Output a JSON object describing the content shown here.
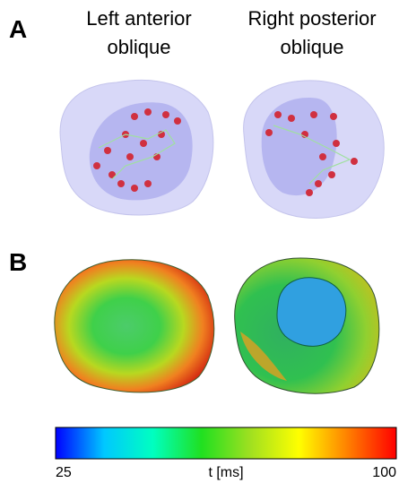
{
  "panels": [
    {
      "label": "A",
      "views": [
        {
          "title": [
            "Left anterior",
            "oblique"
          ]
        },
        {
          "title": [
            "Right posterior",
            "oblique"
          ]
        }
      ]
    },
    {
      "label": "B"
    }
  ],
  "colorbar": {
    "label": "t [ms]",
    "range": [
      25,
      100
    ],
    "ticks": [
      25,
      100
    ],
    "colors": [
      "#0000ff",
      "#00c8ff",
      "#00ffc0",
      "#20e020",
      "#a0e020",
      "#ffff00",
      "#ff8000",
      "#ff0000"
    ]
  }
}
